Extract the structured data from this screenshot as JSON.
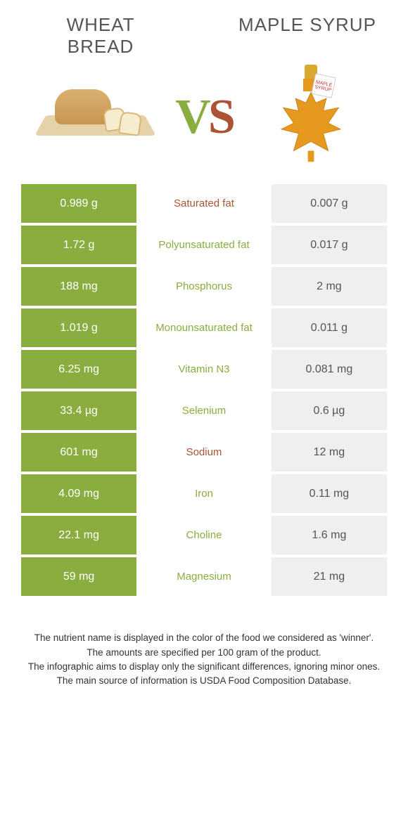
{
  "left_food": {
    "title_line1": "WHEAT",
    "title_line2": "BREAD"
  },
  "right_food": {
    "title": "MAPLE SYRUP"
  },
  "vs": {
    "v": "V",
    "s": "S"
  },
  "colors": {
    "left_winner": "#8aad3f",
    "right_winner": "#ac5335",
    "left_bg": "#8aad3f",
    "right_bg": "#efeff1"
  },
  "rows": [
    {
      "left": "0.989 g",
      "label": "Saturated fat",
      "right": "0.007 g",
      "winner": "right"
    },
    {
      "left": "1.72 g",
      "label": "Polyunsaturated fat",
      "right": "0.017 g",
      "winner": "left"
    },
    {
      "left": "188 mg",
      "label": "Phosphorus",
      "right": "2 mg",
      "winner": "left"
    },
    {
      "left": "1.019 g",
      "label": "Monounsaturated fat",
      "right": "0.011 g",
      "winner": "left"
    },
    {
      "left": "6.25 mg",
      "label": "Vitamin N3",
      "right": "0.081 mg",
      "winner": "left"
    },
    {
      "left": "33.4 µg",
      "label": "Selenium",
      "right": "0.6 µg",
      "winner": "left"
    },
    {
      "left": "601 mg",
      "label": "Sodium",
      "right": "12 mg",
      "winner": "right"
    },
    {
      "left": "4.09 mg",
      "label": "Iron",
      "right": "0.11 mg",
      "winner": "left"
    },
    {
      "left": "22.1 mg",
      "label": "Choline",
      "right": "1.6 mg",
      "winner": "left"
    },
    {
      "left": "59 mg",
      "label": "Magnesium",
      "right": "21 mg",
      "winner": "left"
    }
  ],
  "footer": {
    "line1": "The nutrient name is displayed in the color of the food we considered as 'winner'.",
    "line2": "The amounts are specified per 100 gram of the product.",
    "line3": "The infographic aims to display only the significant differences, ignoring minor ones.",
    "line4": "The main source of information is USDA Food Composition Database."
  },
  "tag_text": "MAPLE SYRUP"
}
